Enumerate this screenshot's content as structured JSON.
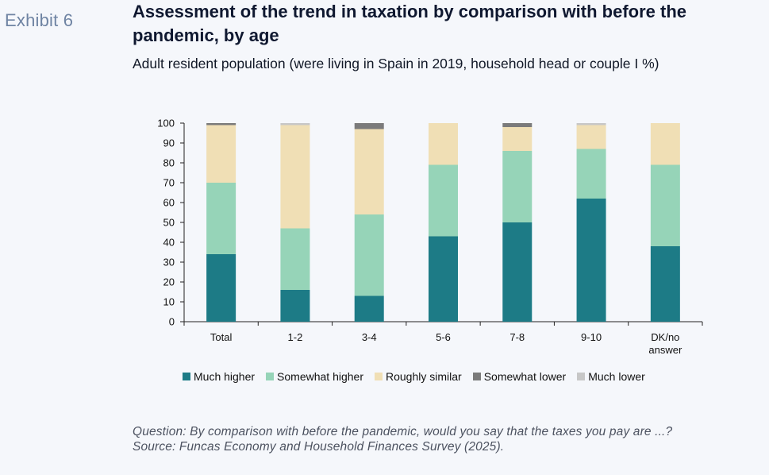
{
  "exhibit_label": "Exhibit 6",
  "title": "Assessment of the trend in taxation by comparison with before the pandemic, by age",
  "subtitle": "Adult resident population (were living in Spain in 2019, household head or couple I %)",
  "question_note": "Question: By comparison with before the pandemic, would you say that the taxes you pay are ...?",
  "source_note": "Source: Funcas Economy and Household Finances Survey (2025).",
  "chart_data": {
    "type": "bar",
    "stacked": true,
    "title": "",
    "xlabel": "",
    "ylabel": "",
    "ylim": [
      0,
      100
    ],
    "yticks": [
      0,
      10,
      20,
      30,
      40,
      50,
      60,
      70,
      80,
      90,
      100
    ],
    "categories": [
      "Total",
      "1-2",
      "3-4",
      "5-6",
      "7-8",
      "9-10",
      "DK/no answer"
    ],
    "legend_position": "bottom",
    "grid": false,
    "series": [
      {
        "name": "Much higher",
        "color": "#1d7b86",
        "values": [
          34,
          16,
          13,
          43,
          50,
          62,
          38
        ]
      },
      {
        "name": "Somewhat higher",
        "color": "#96d4b8",
        "values": [
          36,
          31,
          41,
          36,
          36,
          25,
          41
        ]
      },
      {
        "name": "Roughly similar",
        "color": "#f0dfb5",
        "values": [
          29,
          52,
          43,
          21,
          12,
          12,
          21
        ]
      },
      {
        "name": "Somewhat lower",
        "color": "#7b7b7b",
        "values": [
          1,
          0,
          3,
          0,
          2,
          0,
          0
        ]
      },
      {
        "name": "Much lower",
        "color": "#c7c7c7",
        "values": [
          0,
          1,
          0,
          0,
          0,
          1,
          0
        ]
      }
    ]
  }
}
